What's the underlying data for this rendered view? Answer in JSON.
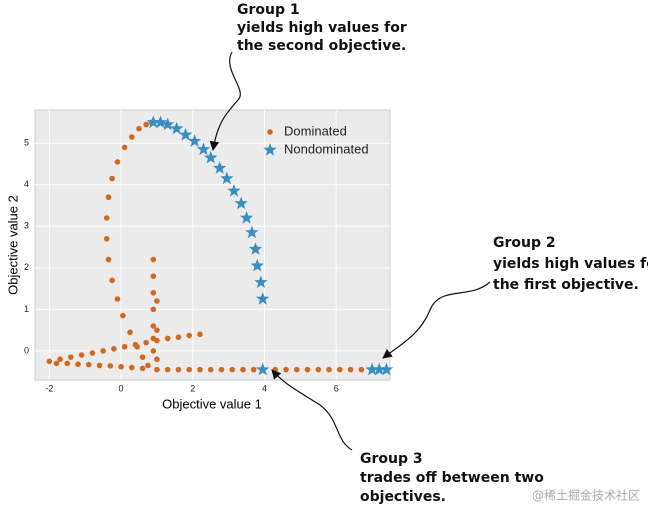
{
  "chart_data": {
    "type": "scatter",
    "xlabel": "Objective value 1",
    "ylabel": "Objective value 2",
    "xlim": [
      -2.4,
      7.5
    ],
    "ylim": [
      -0.7,
      5.8
    ],
    "xticks": [
      -2,
      0,
      2,
      4,
      6
    ],
    "yticks": [
      0,
      1,
      2,
      3,
      4,
      5
    ],
    "grid": true,
    "legend": "upper right",
    "series": [
      {
        "name": "Dominated",
        "color": "#d2691e",
        "marker": "circle",
        "x": [
          0.85,
          0.7,
          0.5,
          0.3,
          0.1,
          -0.1,
          -0.25,
          -0.35,
          -0.4,
          -0.4,
          -0.35,
          -0.25,
          -0.1,
          0.05,
          0.25,
          0.45,
          0.6,
          0.75,
          0.9,
          0.9,
          0.9,
          0.9,
          0.9,
          0.9,
          0.9,
          1.0,
          1.0,
          1.0,
          1.0,
          1.3,
          1.6,
          1.9,
          2.2,
          2.5,
          2.8,
          3.1,
          3.4,
          3.7,
          4.3,
          4.6,
          4.9,
          5.2,
          5.5,
          5.8,
          6.1,
          6.4,
          6.7,
          -2,
          -1.7,
          -1.4,
          -1.1,
          -0.8,
          -0.5,
          -0.2,
          0.1,
          0.4,
          0.7,
          1.0,
          1.3,
          1.6,
          1.9,
          2.2,
          -1.8,
          -1.5,
          -1.2,
          -0.9,
          -0.6,
          -0.3,
          0,
          0.3,
          0.6
        ],
        "values": [
          5.5,
          5.45,
          5.35,
          5.15,
          4.9,
          4.55,
          4.15,
          3.7,
          3.2,
          2.7,
          2.2,
          1.7,
          1.25,
          0.85,
          0.45,
          0.1,
          -0.15,
          -0.35,
          2.2,
          1.8,
          1.4,
          1.0,
          0.6,
          0.3,
          0.0,
          1.2,
          0.5,
          -0.2,
          -0.45,
          -0.45,
          -0.45,
          -0.45,
          -0.45,
          -0.45,
          -0.45,
          -0.45,
          -0.45,
          -0.45,
          -0.45,
          -0.45,
          -0.45,
          -0.45,
          -0.45,
          -0.45,
          -0.45,
          -0.45,
          -0.45,
          -0.25,
          -0.2,
          -0.15,
          -0.1,
          -0.05,
          0,
          0.05,
          0.1,
          0.15,
          0.2,
          0.25,
          0.3,
          0.33,
          0.37,
          0.4,
          -0.3,
          -0.3,
          -0.32,
          -0.33,
          -0.35,
          -0.36,
          -0.38,
          -0.4,
          -0.42
        ]
      },
      {
        "name": "Nondominated",
        "color": "#3a8fc0",
        "marker": "star",
        "x": [
          0.9,
          1.1,
          1.3,
          1.55,
          1.8,
          2.05,
          2.3,
          2.5,
          2.75,
          2.95,
          3.15,
          3.35,
          3.5,
          3.65,
          3.75,
          3.8,
          3.9,
          3.95,
          3.95,
          7.0,
          7.2,
          7.4
        ],
        "values": [
          5.5,
          5.5,
          5.45,
          5.35,
          5.2,
          5.05,
          4.85,
          4.65,
          4.4,
          4.15,
          3.85,
          3.55,
          3.2,
          2.85,
          2.45,
          2.05,
          1.65,
          1.25,
          -0.45,
          -0.45,
          -0.45,
          -0.45
        ]
      }
    ]
  },
  "annotations": [
    {
      "lines": [
        "Group 1",
        "yields high values for",
        "the second objective."
      ]
    },
    {
      "lines": [
        "Group 2",
        "yields high values for",
        "the first objective."
      ]
    },
    {
      "lines": [
        "Group 3",
        "trades off between two",
        "objectives."
      ]
    }
  ],
  "watermark": "@稀土掘金技术社区"
}
